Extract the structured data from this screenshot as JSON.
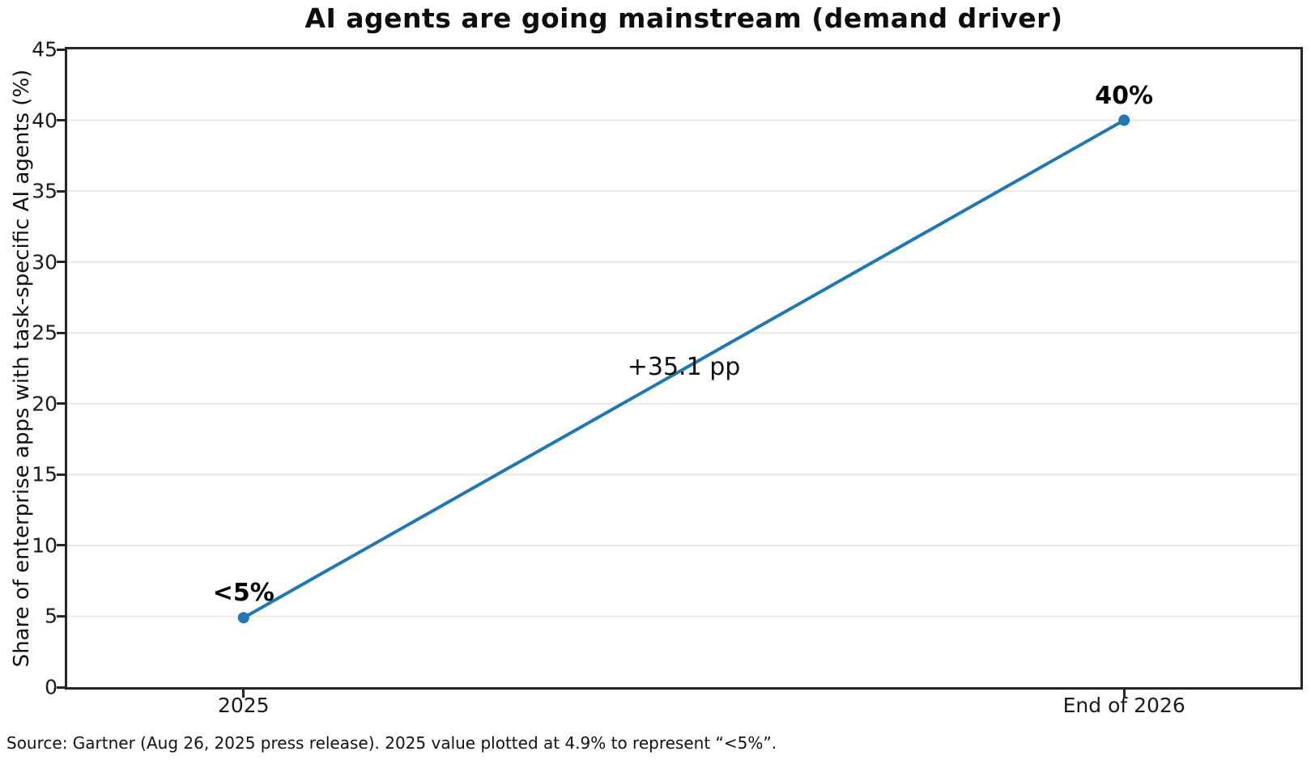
{
  "chart_data": {
    "type": "line",
    "title": "AI agents are going mainstream (demand driver)",
    "ylabel": "Share of enterprise apps with task-specific AI agents (%)",
    "xlabel": "",
    "categories": [
      "2025",
      "End of 2026"
    ],
    "series": [
      {
        "name": "Share of enterprise apps with task-specific AI agents (%)",
        "values": [
          4.9,
          40
        ],
        "color": "#1f77b4",
        "marker": "circle"
      }
    ],
    "annotations": {
      "point_labels": [
        "<5%",
        "40%"
      ],
      "midpoint_label": "+35.1 pp"
    },
    "ylim": [
      0,
      45
    ],
    "yticks": [
      0,
      5,
      10,
      15,
      20,
      25,
      30,
      35,
      40,
      45
    ],
    "grid": "horizontal-y",
    "legend": "none"
  },
  "source_note": "Source: Gartner (Aug 26, 2025 press release). 2025 value plotted at 4.9% to represent “<5%”.",
  "colors": {
    "line": "#1f77b4",
    "grid": "#e8e8e8",
    "axis": "#262626",
    "title": "#0d0d0d",
    "text": "#1a1a1a",
    "background": "#ffffff"
  }
}
